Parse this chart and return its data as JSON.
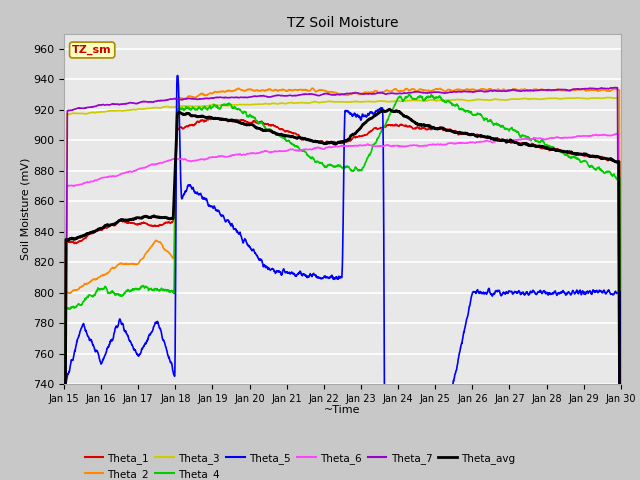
{
  "title": "TZ Soil Moisture",
  "xlabel": "~Time",
  "ylabel": "Soil Moisture (mV)",
  "ylim": [
    740,
    970
  ],
  "xlim": [
    0,
    15
  ],
  "xtick_labels": [
    "Jan 15",
    "Jan 16",
    "Jan 17",
    "Jan 18",
    "Jan 19",
    "Jan 20",
    "Jan 21",
    "Jan 22",
    "Jan 23",
    "Jan 24",
    "Jan 25",
    "Jan 26",
    "Jan 27",
    "Jan 28",
    "Jan 29",
    "Jan 30"
  ],
  "ytick_values": [
    740,
    760,
    780,
    800,
    820,
    840,
    860,
    880,
    900,
    920,
    940,
    960
  ],
  "fig_bg_color": "#c8c8c8",
  "plot_bg_color": "#e8e8e8",
  "legend_label": "TZ_sm",
  "legend_box_color": "#ffffc0",
  "legend_text_color": "#cc0000",
  "series": {
    "Theta_1": {
      "color": "#dd0000",
      "lw": 1.2
    },
    "Theta_2": {
      "color": "#ff8800",
      "lw": 1.2
    },
    "Theta_3": {
      "color": "#cccc00",
      "lw": 1.2
    },
    "Theta_4": {
      "color": "#00cc00",
      "lw": 1.2
    },
    "Theta_5": {
      "color": "#0000ff",
      "lw": 1.2
    },
    "Theta_6": {
      "color": "#ff44ff",
      "lw": 1.2
    },
    "Theta_7": {
      "color": "#9900cc",
      "lw": 1.2
    },
    "Theta_avg": {
      "color": "#000000",
      "lw": 2.0
    }
  }
}
